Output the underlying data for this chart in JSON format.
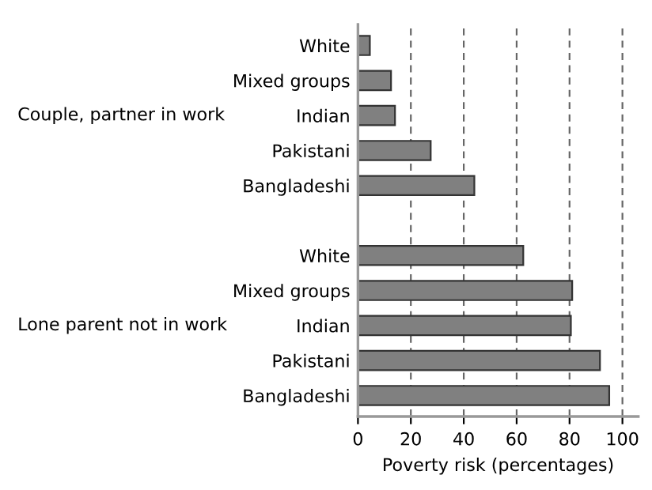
{
  "chart_data": {
    "type": "bar",
    "orientation": "horizontal",
    "xlabel": "Poverty risk (percentages)",
    "categories": [
      "White",
      "Mixed groups",
      "Indian",
      "Pakistani",
      "Bangladeshi",
      null,
      "White",
      "Mixed groups",
      "Indian",
      "Pakistani",
      "Bangladeshi"
    ],
    "values": [
      4.5,
      12.5,
      14,
      27.5,
      44,
      null,
      62.5,
      81,
      80.5,
      91.5,
      95
    ],
    "color": "#808080",
    "xlim": [
      0,
      106
    ],
    "xticks": [
      0,
      20,
      40,
      60,
      80,
      100
    ],
    "grid": "x",
    "annotations": [
      "Couple, partner in work",
      "Lone parent not in work"
    ]
  }
}
